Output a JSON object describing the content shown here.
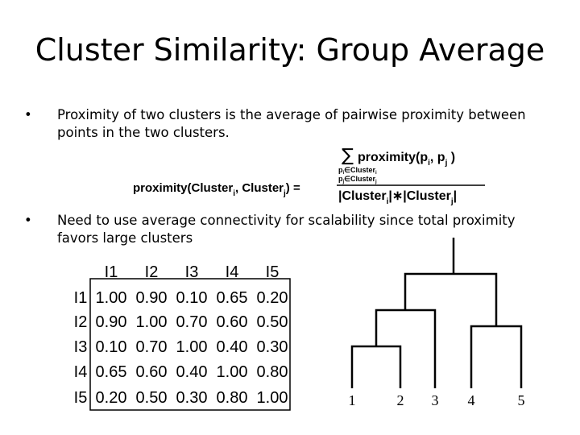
{
  "title": "Cluster Similarity: Group Average",
  "bullets": [
    "Proximity of two clusters is the average of pairwise proximity between points in the two clusters.",
    "Need to use average connectivity for scalability since total proximity favors large clusters"
  ],
  "formula": {
    "lhs": [
      "proximity(Cluster",
      "i",
      ", Cluster",
      "j",
      ") ="
    ],
    "sum": "∑",
    "numerator": [
      "proximity(p",
      "i",
      ", p",
      "j",
      " )"
    ],
    "sum_index": [
      [
        "p",
        "i",
        "∈Cluster",
        "i"
      ],
      [
        "p",
        "j",
        "∈Cluster",
        "j"
      ]
    ],
    "denominator": [
      "|Cluster",
      "i",
      "|∗|Cluster",
      "j",
      "|"
    ]
  },
  "table": {
    "header": [
      "I1",
      "I2",
      "I3",
      "I4",
      "I5"
    ],
    "rows": [
      [
        "I1",
        "1.00",
        "0.90",
        "0.10",
        "0.65",
        "0.20"
      ],
      [
        "I2",
        "0.90",
        "1.00",
        "0.70",
        "0.60",
        "0.50"
      ],
      [
        "I3",
        "0.10",
        "0.70",
        "1.00",
        "0.40",
        "0.30"
      ],
      [
        "I4",
        "0.65",
        "0.60",
        "0.40",
        "1.00",
        "0.80"
      ],
      [
        "I5",
        "0.20",
        "0.50",
        "0.30",
        "0.80",
        "1.00"
      ]
    ]
  },
  "dendrogram": {
    "leaves": [
      "1",
      "2",
      "3",
      "4",
      "5"
    ]
  }
}
